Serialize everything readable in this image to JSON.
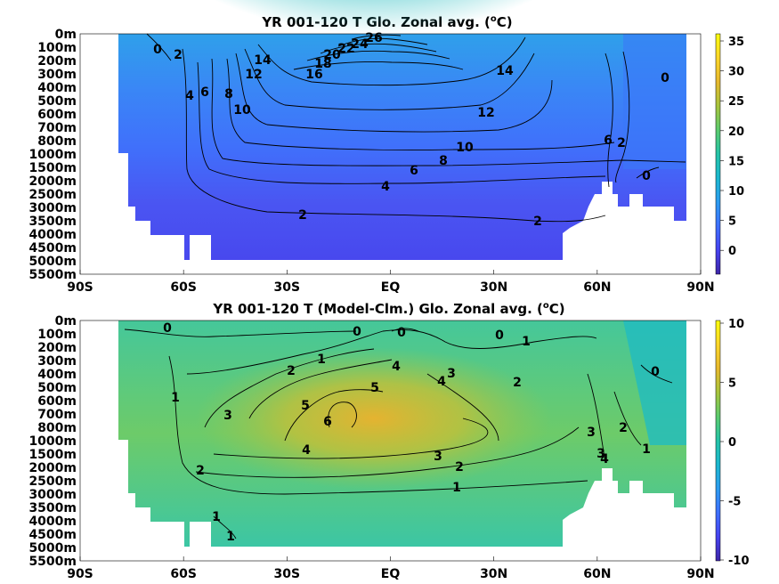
{
  "colors": {
    "land": "#ffffff",
    "contour": "#000000",
    "frame": "#000000",
    "colormap": [
      "#3e26a8",
      "#4743f0",
      "#3f70fe",
      "#2d9cf0",
      "#1cb8d0",
      "#25c4a8",
      "#5ccb6e",
      "#a7c43d",
      "#e6b82e",
      "#fbd62a",
      "#f9fb0e"
    ]
  },
  "chart_data": [
    {
      "type": "heatmap",
      "title": "YR 001-120 T Glo. Zonal avg. (°C)",
      "xlabel": "",
      "ylabel": "",
      "x_ticks": [
        "90S",
        "60S",
        "30S",
        "EQ",
        "30N",
        "60N",
        "90N"
      ],
      "y_ticks": [
        "0m",
        "100m",
        "200m",
        "300m",
        "400m",
        "500m",
        "600m",
        "700m",
        "800m",
        "1000m",
        "1500m",
        "2000m",
        "2500m",
        "3000m",
        "3500m",
        "4000m",
        "4500m",
        "5000m",
        "5500m"
      ],
      "colorbar": {
        "ticks": [
          "35",
          "30",
          "25",
          "20",
          "15",
          "10",
          "5",
          "0"
        ],
        "range": [
          -3,
          36
        ]
      },
      "contour_labels": [
        "0",
        "2",
        "4",
        "6",
        "8",
        "10",
        "12",
        "14",
        "16",
        "18",
        "20",
        "22",
        "24",
        "26",
        "14",
        "12",
        "10",
        "8",
        "6",
        "4",
        "2",
        "2",
        "0",
        "0",
        "2",
        "6"
      ]
    },
    {
      "type": "heatmap",
      "title": "YR 001-120 T (Model-Clm.) Glo. Zonal avg. (°C)",
      "xlabel": "",
      "ylabel": "",
      "x_ticks": [
        "90S",
        "60S",
        "30S",
        "EQ",
        "30N",
        "60N",
        "90N"
      ],
      "y_ticks": [
        "0m",
        "100m",
        "200m",
        "300m",
        "400m",
        "500m",
        "600m",
        "700m",
        "800m",
        "1000m",
        "1500m",
        "2000m",
        "2500m",
        "3000m",
        "3500m",
        "4000m",
        "4500m",
        "5000m",
        "5500m"
      ],
      "colorbar": {
        "ticks": [
          "10",
          "5",
          "0",
          "-5",
          "-10"
        ],
        "range": [
          -10,
          10
        ]
      },
      "contour_labels": [
        "0",
        "0",
        "0",
        "0",
        "1",
        "1",
        "2",
        "4",
        "4",
        "3",
        "3",
        "2",
        "5",
        "5",
        "6",
        "4",
        "3",
        "2",
        "1",
        "1",
        "1",
        "1",
        "3",
        "2",
        "1",
        "3",
        "4",
        "0",
        "2"
      ]
    }
  ]
}
